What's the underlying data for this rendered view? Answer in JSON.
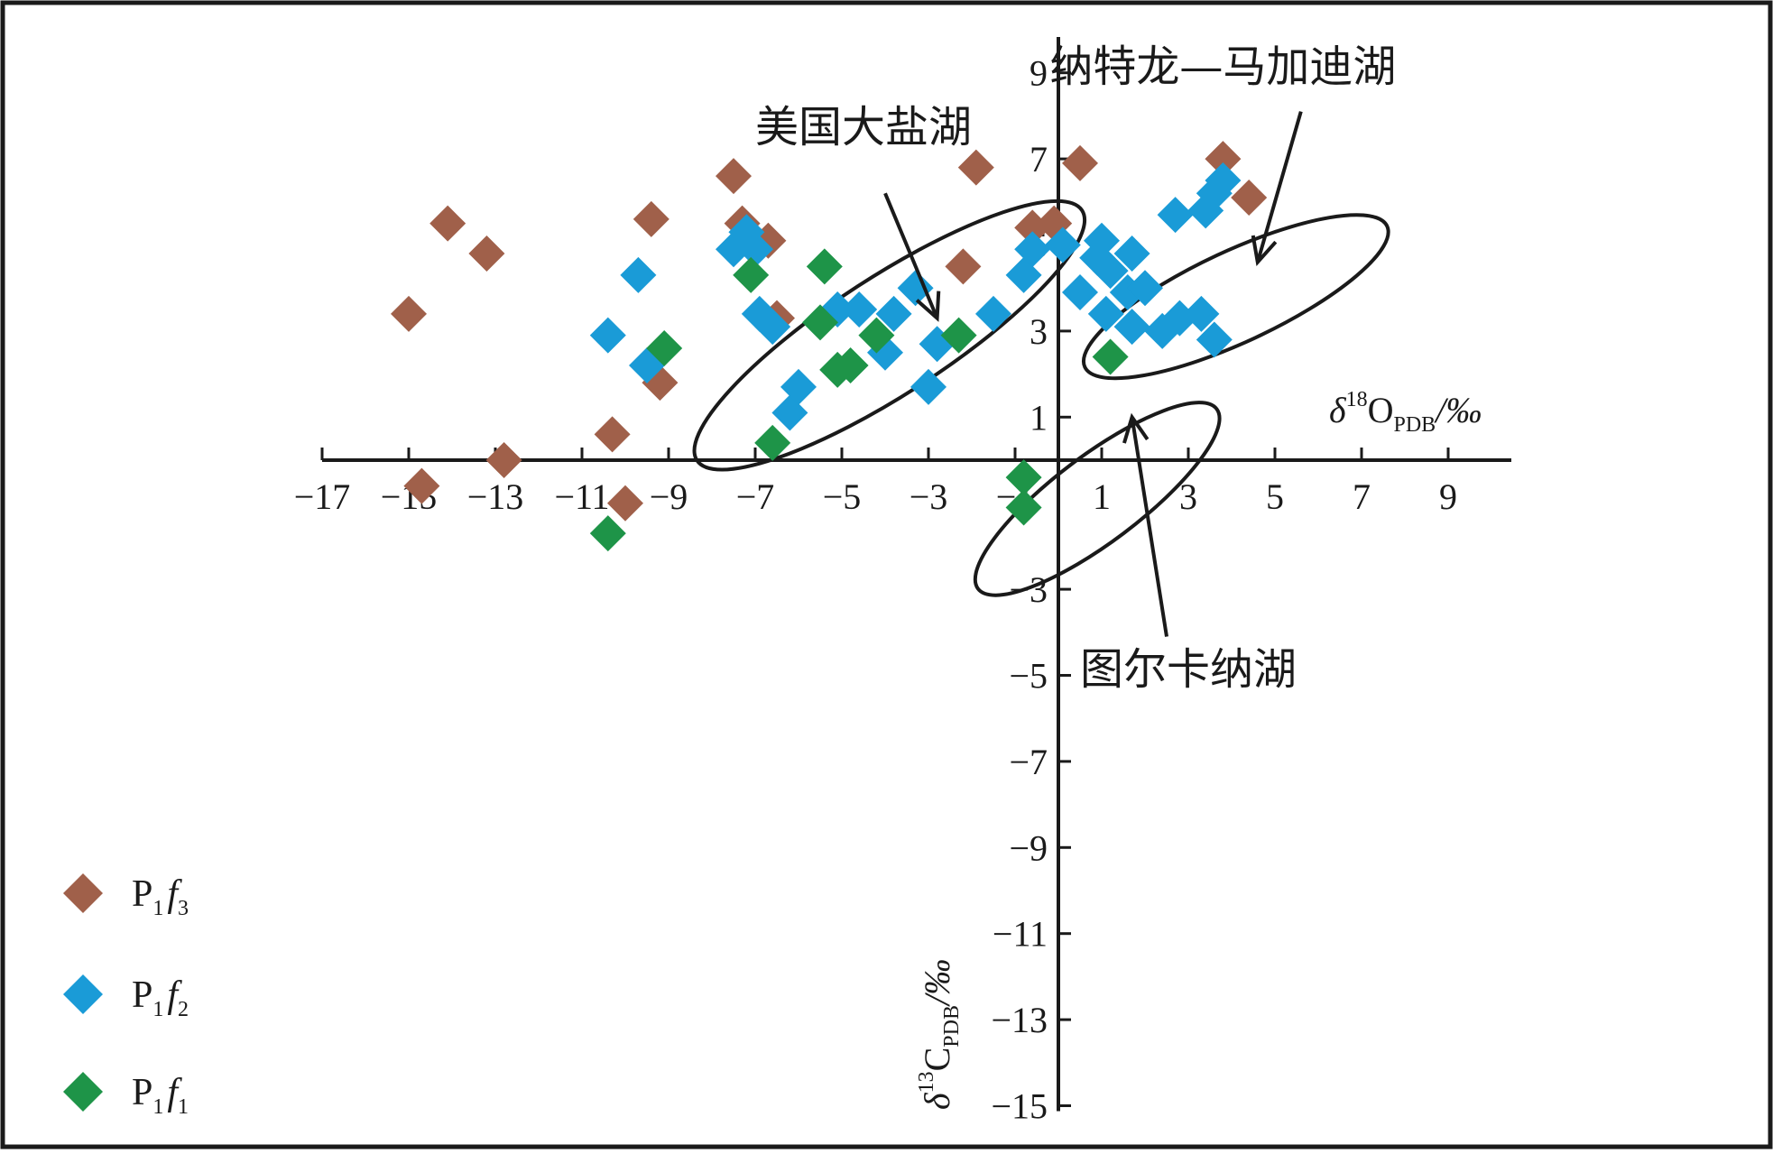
{
  "chart_data": {
    "type": "scatter",
    "xaxis": {
      "range": [
        -17,
        10
      ],
      "ticks": [
        -17,
        -15,
        -13,
        -11,
        -9,
        -7,
        -5,
        -3,
        -1,
        1,
        3,
        5,
        7,
        9
      ],
      "tick_labels": [
        "−17",
        "−15",
        "−13",
        "−11",
        "−9",
        "−7",
        "−5",
        "−3",
        "−1",
        "1",
        "3",
        "5",
        "7",
        "9"
      ],
      "label": {
        "delta": "δ",
        "sup": "18",
        "main": "O",
        "sub": "PDB",
        "unit": "/‰"
      }
    },
    "yaxis": {
      "range": [
        -15,
        10
      ],
      "ticks": [
        9,
        7,
        5,
        3,
        1,
        -3,
        -5,
        -7,
        -9,
        -11,
        -13,
        -15
      ],
      "tick_labels": [
        "9",
        "7",
        "5",
        "3",
        "1",
        "−3",
        "−5",
        "−7",
        "−9",
        "−11",
        "−13",
        "−15"
      ],
      "label": {
        "delta": "δ",
        "sup": "13",
        "main": "C",
        "sub": "PDB",
        "unit": "/‰"
      }
    },
    "grid": false,
    "legend_position": "bottom-left",
    "series": [
      {
        "key": "f3",
        "name": {
          "main": "P",
          "sub1": "1",
          "f": "f",
          "sub2": "3"
        },
        "color": "#a0604a",
        "points": [
          [
            -15.0,
            3.4
          ],
          [
            -14.7,
            -0.6
          ],
          [
            -14.1,
            5.5
          ],
          [
            -13.2,
            4.8
          ],
          [
            -12.8,
            0.0
          ],
          [
            -10.3,
            0.6
          ],
          [
            -10.0,
            -1.0
          ],
          [
            -9.4,
            5.6
          ],
          [
            -9.2,
            1.8
          ],
          [
            -7.5,
            6.6
          ],
          [
            -7.3,
            5.5
          ],
          [
            -6.7,
            5.1
          ],
          [
            -6.5,
            3.3
          ],
          [
            -2.2,
            4.5
          ],
          [
            -1.9,
            6.8
          ],
          [
            -0.6,
            5.4
          ],
          [
            -0.1,
            5.5
          ],
          [
            0.5,
            6.9
          ],
          [
            3.8,
            7.0
          ],
          [
            4.4,
            6.1
          ]
        ]
      },
      {
        "key": "f2",
        "name": {
          "main": "P",
          "sub1": "1",
          "f": "f",
          "sub2": "2"
        },
        "color": "#1a9bd7",
        "points": [
          [
            -10.4,
            2.9
          ],
          [
            -9.7,
            4.3
          ],
          [
            -9.5,
            2.2
          ],
          [
            -7.5,
            4.9
          ],
          [
            -7.2,
            5.3
          ],
          [
            -7.0,
            4.9
          ],
          [
            -6.9,
            3.4
          ],
          [
            -6.6,
            3.1
          ],
          [
            -6.2,
            1.1
          ],
          [
            -6.0,
            1.7
          ],
          [
            -5.1,
            3.5
          ],
          [
            -4.6,
            3.5
          ],
          [
            -4.0,
            2.5
          ],
          [
            -3.8,
            3.4
          ],
          [
            -3.3,
            4.0
          ],
          [
            -3.0,
            1.7
          ],
          [
            -2.8,
            2.7
          ],
          [
            -1.5,
            3.4
          ],
          [
            -0.8,
            4.3
          ],
          [
            -0.6,
            4.9
          ],
          [
            0.1,
            5.0
          ],
          [
            0.5,
            3.9
          ],
          [
            0.9,
            4.7
          ],
          [
            1.0,
            5.1
          ],
          [
            1.1,
            3.4
          ],
          [
            1.2,
            4.4
          ],
          [
            1.6,
            3.9
          ],
          [
            1.7,
            4.8
          ],
          [
            1.7,
            3.1
          ],
          [
            2.0,
            4.0
          ],
          [
            2.4,
            3.0
          ],
          [
            2.7,
            5.7
          ],
          [
            2.8,
            3.3
          ],
          [
            3.3,
            3.4
          ],
          [
            3.4,
            5.8
          ],
          [
            3.6,
            6.2
          ],
          [
            3.8,
            6.5
          ],
          [
            3.6,
            2.8
          ]
        ]
      },
      {
        "key": "f1",
        "name": {
          "main": "P",
          "sub1": "1",
          "f": "f",
          "sub2": "1"
        },
        "color": "#1e9448",
        "points": [
          [
            -10.4,
            -1.7
          ],
          [
            -9.1,
            2.6
          ],
          [
            -7.1,
            4.3
          ],
          [
            -6.6,
            0.4
          ],
          [
            -5.4,
            4.5
          ],
          [
            -5.5,
            3.2
          ],
          [
            -5.1,
            2.1
          ],
          [
            -4.8,
            2.2
          ],
          [
            -4.2,
            2.9
          ],
          [
            -2.3,
            2.9
          ],
          [
            -0.8,
            -0.4
          ],
          [
            -0.8,
            -1.1
          ],
          [
            1.2,
            2.4
          ]
        ]
      }
    ],
    "ellipses": [
      {
        "cx": -3.9,
        "cy": 2.9,
        "rx": 5.3,
        "ry": 1.35,
        "angle_deg": 33
      },
      {
        "cx": 4.1,
        "cy": 3.8,
        "rx": 3.85,
        "ry": 1.05,
        "angle_deg": 25
      },
      {
        "cx": 0.9,
        "cy": -0.9,
        "rx": 3.45,
        "ry": 1.0,
        "angle_deg": 37
      }
    ],
    "annotations": [
      {
        "text": "美国大盐湖",
        "text_at": [
          -4.5,
          7.4
        ],
        "arrow_from": [
          -4.0,
          6.2
        ],
        "arrow_to": [
          -2.8,
          3.3
        ]
      },
      {
        "text": "纳特龙—马加迪湖",
        "text_at": [
          3.8,
          8.8
        ],
        "arrow_from": [
          5.6,
          8.1
        ],
        "arrow_to": [
          4.6,
          4.6
        ]
      },
      {
        "text": "图尔卡纳湖",
        "text_at": [
          3.0,
          -5.2
        ],
        "arrow_from": [
          2.5,
          -4.1
        ],
        "arrow_to": [
          1.7,
          1.0
        ]
      }
    ]
  }
}
